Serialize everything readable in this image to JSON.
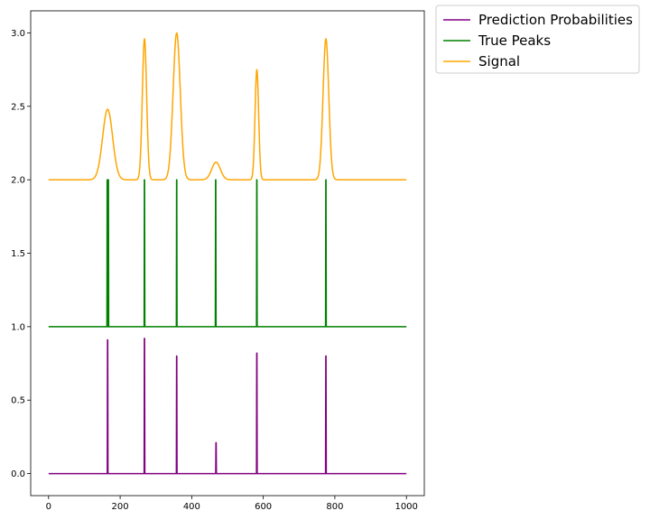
{
  "chart_data": {
    "type": "line",
    "title": "",
    "xlabel": "",
    "ylabel": "",
    "xlim": [
      -50,
      1050
    ],
    "ylim": [
      -0.15,
      3.15
    ],
    "x_ticks": [
      0,
      200,
      400,
      600,
      800,
      1000
    ],
    "y_ticks": [
      0.0,
      0.5,
      1.0,
      1.5,
      2.0,
      2.5,
      3.0
    ],
    "x_tick_labels": [
      "0",
      "200",
      "400",
      "600",
      "800",
      "1000"
    ],
    "y_tick_labels": [
      "0.0",
      "0.5",
      "1.0",
      "1.5",
      "2.0",
      "2.5",
      "3.0"
    ],
    "grid": false,
    "legend_position": "outside-top-right",
    "x_range": [
      0,
      1000
    ],
    "peak_positions": [
      165,
      268,
      358,
      468,
      582,
      775
    ],
    "series": [
      {
        "name": "Prediction Probabilities",
        "color": "#800080",
        "baseline": 0.0,
        "spikes": [
          {
            "x": 165,
            "peak": 0.91
          },
          {
            "x": 268,
            "peak": 0.92
          },
          {
            "x": 358,
            "peak": 0.8
          },
          {
            "x": 468,
            "peak": 0.21
          },
          {
            "x": 582,
            "peak": 0.82
          },
          {
            "x": 775,
            "peak": 0.8
          }
        ]
      },
      {
        "name": "True Peaks",
        "color": "#008000",
        "baseline": 1.0,
        "spikes": [
          {
            "x": 164,
            "peak": 2.0
          },
          {
            "x": 167,
            "peak": 2.0
          },
          {
            "x": 268,
            "peak": 2.0
          },
          {
            "x": 358,
            "peak": 2.0
          },
          {
            "x": 467,
            "peak": 2.0
          },
          {
            "x": 582,
            "peak": 2.0
          },
          {
            "x": 775,
            "peak": 2.0
          }
        ]
      },
      {
        "name": "Signal",
        "color": "#FFA500",
        "baseline": 2.0,
        "gaussians": [
          {
            "center": 165,
            "amplitude": 0.48,
            "sigma": 14
          },
          {
            "center": 268,
            "amplitude": 0.96,
            "sigma": 6
          },
          {
            "center": 358,
            "amplitude": 1.0,
            "sigma": 10
          },
          {
            "center": 468,
            "amplitude": 0.12,
            "sigma": 12
          },
          {
            "center": 582,
            "amplitude": 0.75,
            "sigma": 5
          },
          {
            "center": 775,
            "amplitude": 0.96,
            "sigma": 8
          }
        ]
      }
    ]
  }
}
